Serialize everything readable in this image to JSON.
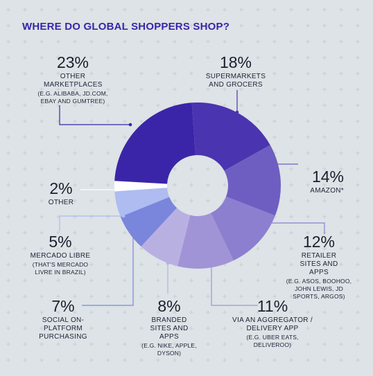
{
  "title": "WHERE DO GLOBAL SHOPPERS SHOP?",
  "chart_data": {
    "type": "pie",
    "variant": "donut",
    "title": "WHERE DO GLOBAL SHOPPERS SHOP?",
    "unit": "%",
    "slices": [
      {
        "pct": "18%",
        "value": 18,
        "name": "SUPERMARKETS AND GROCERS",
        "example": "",
        "color": "#4b34b0"
      },
      {
        "pct": "14%",
        "value": 14,
        "name": "AMAZON*",
        "example": "",
        "color": "#6e5ec2"
      },
      {
        "pct": "12%",
        "value": 12,
        "name": "RETAILER SITES AND APPS",
        "example": "(E.G. ASOS, BOOHOO, JOHN LEWIS, JD SPORTS, ARGOS)",
        "color": "#8c7fcf"
      },
      {
        "pct": "11%",
        "value": 11,
        "name": "VIA AN AGGREGATOR / DELIVERY APP",
        "example": "(E.G. UBER EATS, DELIVEROO)",
        "color": "#a194d6"
      },
      {
        "pct": "8%",
        "value": 8,
        "name": "BRANDED SITES AND APPS",
        "example": "(E.G. NIKE, APPLE, DYSON)",
        "color": "#b9b0e2"
      },
      {
        "pct": "7%",
        "value": 7,
        "name": "SOCIAL ON-PLATFORM PURCHASING",
        "example": "",
        "color": "#7a86dc"
      },
      {
        "pct": "5%",
        "value": 5,
        "name": "MERCADO LIBRE",
        "example": "(THAT'S MERCADO LIVRE IN BRAZIL)",
        "color": "#aebcf1"
      },
      {
        "pct": "2%",
        "value": 2,
        "name": "OTHER",
        "example": "",
        "color": "#ffffff"
      },
      {
        "pct": "23%",
        "value": 23,
        "name": "OTHER MARKETPLACES",
        "example": "(E.G. ALIBABA, JD.COM, EBAY AND GUMTREE)",
        "color": "#3a25a8"
      }
    ]
  }
}
